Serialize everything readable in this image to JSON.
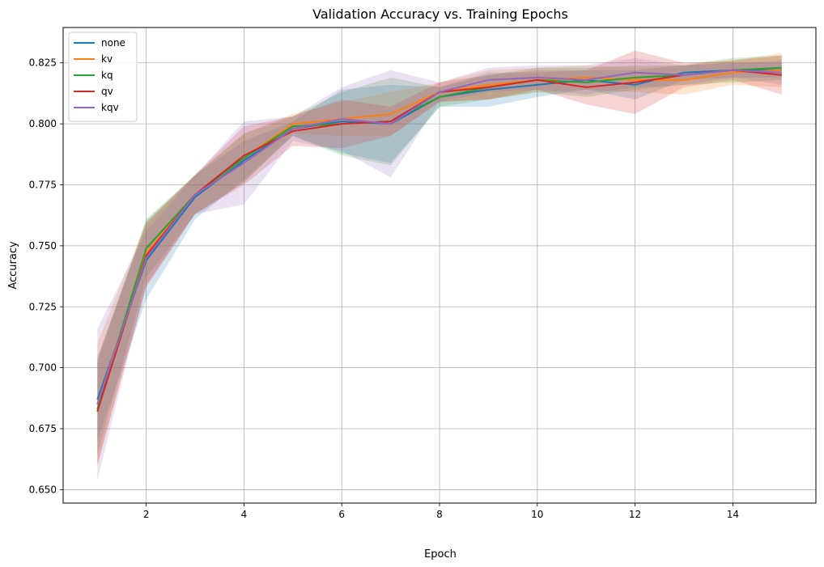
{
  "chart_data": {
    "type": "line",
    "title": "Validation Accuracy vs. Training Epochs",
    "xlabel": "Epoch",
    "ylabel": "Accuracy",
    "xlim": [
      0.3,
      15.7
    ],
    "ylim": [
      0.6445,
      0.8395
    ],
    "xticks": [
      2,
      4,
      6,
      8,
      10,
      12,
      14
    ],
    "yticks": [
      0.65,
      0.675,
      0.7,
      0.725,
      0.75,
      0.775,
      0.8,
      0.825
    ],
    "grid": true,
    "legend_position": "top-left",
    "x": [
      1,
      2,
      3,
      4,
      5,
      6,
      7,
      8,
      9,
      10,
      11,
      12,
      13,
      14,
      15
    ],
    "series": [
      {
        "name": "none",
        "color": "#1f77b4",
        "values": [
          0.687,
          0.744,
          0.77,
          0.785,
          0.798,
          0.801,
          0.8,
          0.811,
          0.814,
          0.816,
          0.818,
          0.816,
          0.821,
          0.822,
          0.822
        ],
        "lower": [
          0.67,
          0.728,
          0.761,
          0.777,
          0.795,
          0.788,
          0.784,
          0.807,
          0.807,
          0.811,
          0.814,
          0.81,
          0.818,
          0.819,
          0.819
        ],
        "upper": [
          0.704,
          0.76,
          0.779,
          0.793,
          0.801,
          0.814,
          0.816,
          0.815,
          0.821,
          0.821,
          0.822,
          0.822,
          0.824,
          0.825,
          0.825
        ]
      },
      {
        "name": "kv",
        "color": "#ff7f0e",
        "values": [
          0.685,
          0.747,
          0.771,
          0.786,
          0.8,
          0.802,
          0.804,
          0.813,
          0.816,
          0.818,
          0.819,
          0.818,
          0.818,
          0.821,
          0.822
        ],
        "lower": [
          0.66,
          0.734,
          0.763,
          0.776,
          0.796,
          0.795,
          0.795,
          0.809,
          0.81,
          0.813,
          0.814,
          0.813,
          0.812,
          0.816,
          0.815
        ],
        "upper": [
          0.71,
          0.76,
          0.779,
          0.796,
          0.804,
          0.809,
          0.813,
          0.817,
          0.822,
          0.823,
          0.824,
          0.823,
          0.824,
          0.826,
          0.829
        ]
      },
      {
        "name": "kq",
        "color": "#2ca02c",
        "values": [
          0.683,
          0.749,
          0.771,
          0.786,
          0.799,
          0.8,
          0.801,
          0.811,
          0.815,
          0.818,
          0.817,
          0.819,
          0.82,
          0.822,
          0.823
        ],
        "lower": [
          0.664,
          0.737,
          0.763,
          0.776,
          0.795,
          0.787,
          0.783,
          0.807,
          0.81,
          0.813,
          0.811,
          0.814,
          0.816,
          0.817,
          0.818
        ],
        "upper": [
          0.702,
          0.761,
          0.779,
          0.796,
          0.803,
          0.813,
          0.819,
          0.815,
          0.82,
          0.823,
          0.823,
          0.824,
          0.824,
          0.827,
          0.828
        ]
      },
      {
        "name": "qv",
        "color": "#d62728",
        "values": [
          0.682,
          0.746,
          0.771,
          0.787,
          0.797,
          0.8,
          0.801,
          0.813,
          0.815,
          0.818,
          0.815,
          0.817,
          0.82,
          0.822,
          0.82
        ],
        "lower": [
          0.66,
          0.733,
          0.763,
          0.775,
          0.791,
          0.79,
          0.795,
          0.809,
          0.81,
          0.814,
          0.808,
          0.804,
          0.815,
          0.818,
          0.812
        ],
        "upper": [
          0.704,
          0.759,
          0.779,
          0.799,
          0.803,
          0.81,
          0.807,
          0.817,
          0.82,
          0.822,
          0.822,
          0.83,
          0.825,
          0.826,
          0.828
        ]
      },
      {
        "name": "kqv",
        "color": "#9467bd",
        "values": [
          0.685,
          0.745,
          0.771,
          0.784,
          0.798,
          0.802,
          0.8,
          0.813,
          0.818,
          0.819,
          0.818,
          0.821,
          0.82,
          0.822,
          0.821
        ],
        "lower": [
          0.654,
          0.734,
          0.763,
          0.767,
          0.793,
          0.789,
          0.778,
          0.809,
          0.813,
          0.814,
          0.812,
          0.815,
          0.816,
          0.819,
          0.816
        ],
        "upper": [
          0.716,
          0.756,
          0.779,
          0.801,
          0.803,
          0.815,
          0.822,
          0.817,
          0.823,
          0.824,
          0.824,
          0.827,
          0.824,
          0.825,
          0.826
        ]
      }
    ]
  }
}
